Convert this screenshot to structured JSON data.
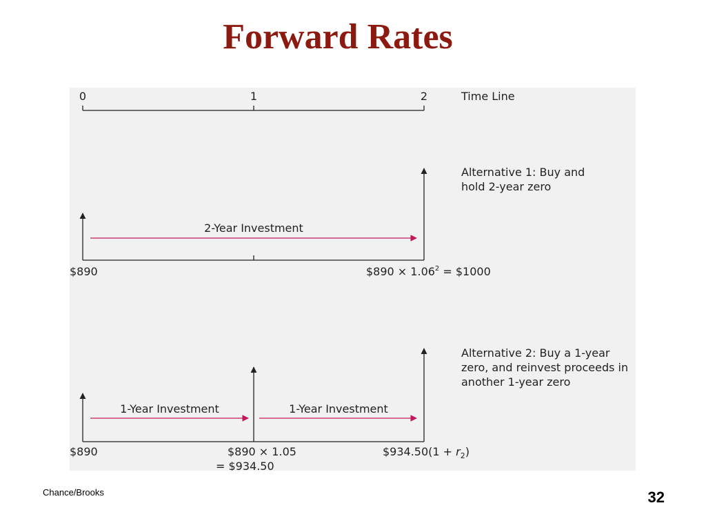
{
  "title": "Forward Rates",
  "footer": {
    "source": "Chance/Brooks",
    "page": "32"
  },
  "timeline": {
    "ticks": [
      "0",
      "1",
      "2"
    ],
    "label": "Time Line"
  },
  "alternative1": {
    "desc_line1": "Alternative 1: Buy and",
    "desc_line2": "hold 2-year zero",
    "arrow_label": "2-Year Investment",
    "start_value": "$890",
    "end_prefix": "$890 × 1.06",
    "end_exponent": "2",
    "end_suffix": " = $1000"
  },
  "alternative2": {
    "desc_line1": "Alternative 2: Buy a 1-year",
    "desc_line2": "zero, and reinvest proceeds in",
    "desc_line3": "another 1-year zero",
    "arrow1_label": "1-Year Investment",
    "arrow2_label": "1-Year Investment",
    "start_value": "$890",
    "mid_line1": "$890 × 1.05",
    "mid_line2": "= $934.50",
    "end_prefix": "$934.50(1 + ",
    "end_var": "r",
    "end_subscript": "2",
    "end_suffix": ")"
  },
  "colors": {
    "title": "#8b1a10",
    "arrow": "#c2185b",
    "line": "#222222",
    "panel": "#f1f1f1"
  }
}
